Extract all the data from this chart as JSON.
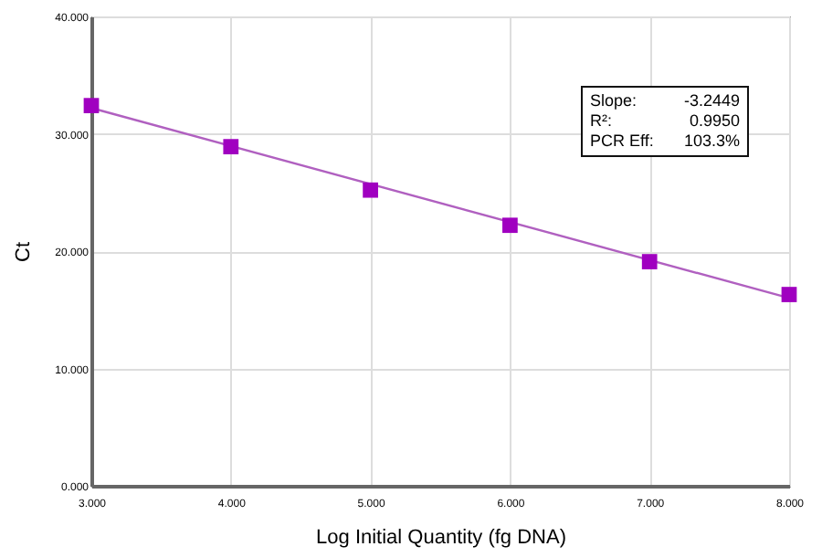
{
  "chart_data": {
    "type": "scatter",
    "xlabel": "Log Initial Quantity (fg DNA)",
    "ylabel": "Ct",
    "x": [
      3,
      4,
      5,
      6,
      7,
      8
    ],
    "series": [
      {
        "color": "#a000c0",
        "marker": "square",
        "values": [
          32.4,
          28.9,
          25.2,
          22.2,
          19.1,
          16.3
        ]
      },
      {
        "type": "line",
        "color": "#b060c0",
        "x": [
          3,
          8
        ],
        "values": [
          32.2,
          16.0
        ],
        "marker": "none"
      }
    ],
    "xlim": [
      3,
      8
    ],
    "ylim": [
      0,
      40
    ],
    "xticks": [
      {
        "value": 3,
        "label": "3.000"
      },
      {
        "value": 4,
        "label": "4.000"
      },
      {
        "value": 5,
        "label": "5.000"
      },
      {
        "value": 6,
        "label": "6.000"
      },
      {
        "value": 7,
        "label": "7.000"
      },
      {
        "value": 8,
        "label": "8.000"
      }
    ],
    "yticks": [
      {
        "value": 0,
        "label": "0.000"
      },
      {
        "value": 10,
        "label": "10.000"
      },
      {
        "value": 20,
        "label": "20.000"
      },
      {
        "value": 30,
        "label": "30.000"
      },
      {
        "value": 40,
        "label": "40.000"
      }
    ],
    "grid": true,
    "annotations": [
      "Slope: -3.2449",
      "R²: 0.9950",
      "PCR Eff: 103.3%"
    ]
  }
}
